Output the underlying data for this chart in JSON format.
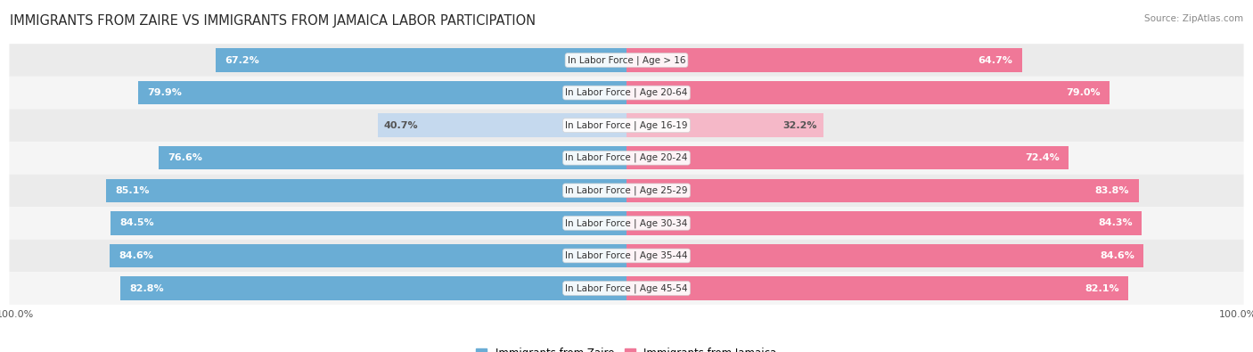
{
  "title": "IMMIGRANTS FROM ZAIRE VS IMMIGRANTS FROM JAMAICA LABOR PARTICIPATION",
  "source": "Source: ZipAtlas.com",
  "categories": [
    "In Labor Force | Age > 16",
    "In Labor Force | Age 20-64",
    "In Labor Force | Age 16-19",
    "In Labor Force | Age 20-24",
    "In Labor Force | Age 25-29",
    "In Labor Force | Age 30-34",
    "In Labor Force | Age 35-44",
    "In Labor Force | Age 45-54"
  ],
  "zaire_values": [
    67.2,
    79.9,
    40.7,
    76.6,
    85.1,
    84.5,
    84.6,
    82.8
  ],
  "jamaica_values": [
    64.7,
    79.0,
    32.2,
    72.4,
    83.8,
    84.3,
    84.6,
    82.1
  ],
  "zaire_color": "#6AADD5",
  "zaire_color_light": "#C5D9EE",
  "jamaica_color": "#F07898",
  "jamaica_color_light": "#F5B8C8",
  "row_bg_even": "#EBEBEB",
  "row_bg_odd": "#F5F5F5",
  "label_color_white": "#FFFFFF",
  "label_color_dark": "#555555",
  "max_value": 100.0,
  "legend_zaire": "Immigrants from Zaire",
  "legend_jamaica": "Immigrants from Jamaica",
  "title_fontsize": 10.5,
  "source_fontsize": 7.5,
  "label_fontsize": 8.0,
  "category_fontsize": 7.5
}
